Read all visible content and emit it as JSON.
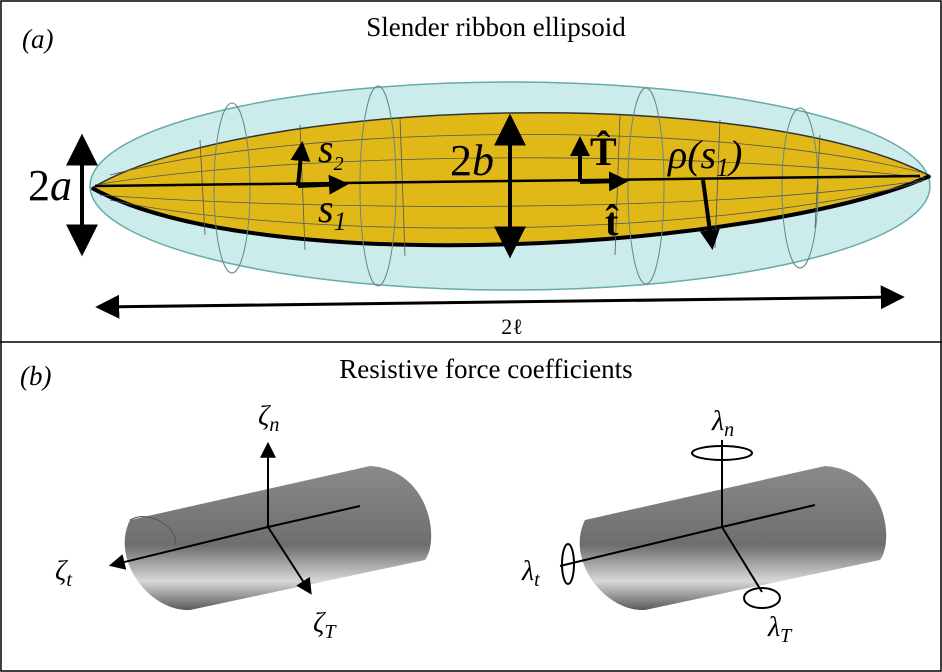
{
  "panel_a": {
    "label": "(a)",
    "title": "Slender ribbon ellipsoid",
    "annotations": {
      "thickness": {
        "base": "2",
        "var": "a"
      },
      "s2": {
        "base": "s",
        "sub": "2"
      },
      "s1": {
        "base": "s",
        "sub": "1"
      },
      "width": {
        "base": "2",
        "var": "b"
      },
      "T_hat": "T̂",
      "t_hat": "t̂",
      "rho": {
        "base": "ρ(s",
        "sub": "1",
        "end": ")"
      },
      "length": "2ℓ"
    }
  },
  "panel_b": {
    "label": "(b)",
    "title": "Resistive force coefficients",
    "left": {
      "zeta_n": {
        "base": "ζ",
        "sub": "n"
      },
      "zeta_t": {
        "base": "ζ",
        "sub": "t"
      },
      "zeta_T": {
        "base": "ζ",
        "sub": "T"
      }
    },
    "right": {
      "lambda_n": {
        "base": "λ",
        "sub": "n"
      },
      "lambda_t": {
        "base": "λ",
        "sub": "t"
      },
      "lambda_T": {
        "base": "λ",
        "sub": "T"
      }
    }
  }
}
